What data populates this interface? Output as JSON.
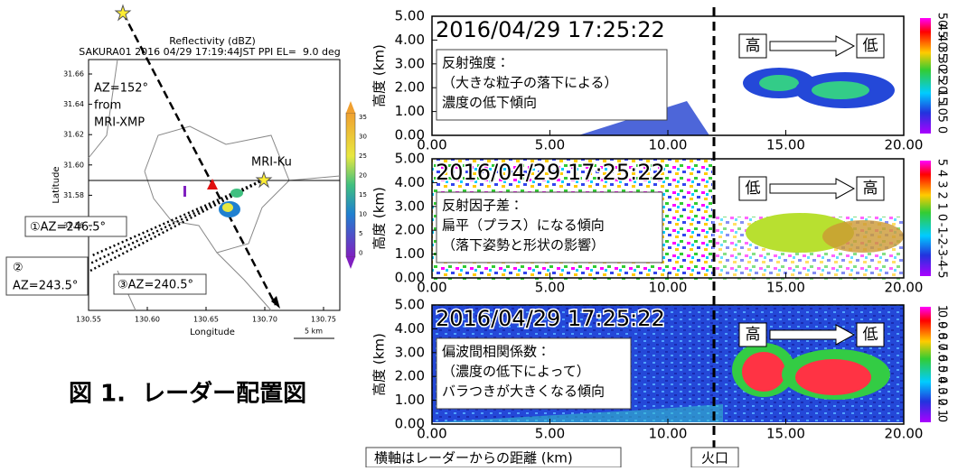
{
  "map": {
    "title": "Reflectivity (dBZ)",
    "subtitle": "SAKURA01 2016 04/29 17:19:44JST PPI EL=  9.0 deg",
    "yticks": [
      "31.66",
      "31.64",
      "31.62",
      "31.60",
      "31.58",
      "31.56"
    ],
    "xticks": [
      "130.55",
      "130.60",
      "130.65",
      "130.70",
      "130.75"
    ],
    "ylabel": "Latitude",
    "xlabel": "Longitude",
    "colorbar_ticks": [
      "35",
      "30",
      "25",
      "20",
      "15",
      "10",
      "5",
      "0"
    ],
    "scale": "5 km",
    "xmp_label": [
      "AZ=152°",
      "from",
      "MRI-XMP"
    ],
    "ku_label": "MRI-Ku",
    "az_labels": [
      "①AZ=246.5°",
      "②",
      "AZ=243.5°",
      "③AZ=240.5°"
    ]
  },
  "caption": "図 1.  レーダー配置図",
  "axes": {
    "ylabel": "高度 (km)",
    "yticks": [
      "5.00",
      "4.00",
      "3.00",
      "2.00",
      "1.00",
      "0.00"
    ],
    "xticks": [
      "0.00",
      "5.00",
      "10.00",
      "15.00",
      "20.00"
    ]
  },
  "panels": [
    {
      "timestamp": "2016/04/29 17:25:22",
      "arrow_from": "高",
      "arrow_to": "低",
      "note": [
        "反射強度：",
        "（大きな粒子の落下による）",
        "濃度の低下傾向"
      ],
      "colorbar_ticks": [
        "50",
        "45",
        "40",
        "35",
        "30",
        "25",
        "20",
        "15",
        "10",
        "5",
        "0"
      ]
    },
    {
      "timestamp": "2016/04/29 17:25:22",
      "arrow_from": "低",
      "arrow_to": "高",
      "note": [
        "反射因子差：",
        "扁平（プラス）になる傾向",
        "（落下姿勢と形状の影響）"
      ],
      "colorbar_ticks": [
        "5",
        "4",
        "3",
        "2",
        "1",
        "0",
        "-1",
        "-2",
        "-3",
        "-4",
        "-5"
      ]
    },
    {
      "timestamp": "2016/04/29 17:25:22",
      "arrow_from": "高",
      "arrow_to": "低",
      "note": [
        "偏波間相関係数：",
        "（濃度の低下によって）",
        "バラつきが大きくなる傾向"
      ],
      "colorbar_ticks": [
        "1",
        "0.9",
        "0.8",
        "0.7",
        "0.6",
        "0.5",
        "0.4",
        "0.3",
        "0.2",
        "0.1",
        "0"
      ]
    }
  ],
  "footer": {
    "axis_note": "横軸はレーダーからの距離 (km)",
    "crater": "火口"
  }
}
